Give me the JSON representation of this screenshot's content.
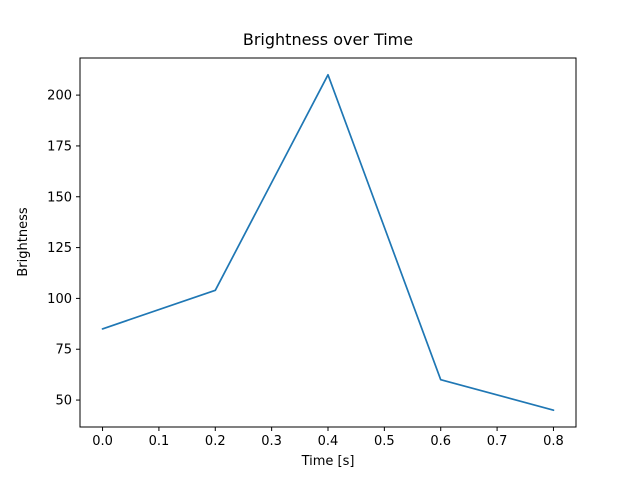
{
  "chart_data": {
    "type": "line",
    "title": "Brightness over Time",
    "xlabel": "Time [s]",
    "ylabel": "Brightness",
    "x": [
      0.0,
      0.2,
      0.4,
      0.6,
      0.8
    ],
    "y": [
      85,
      104,
      210,
      60,
      45
    ],
    "series": [
      {
        "name": "Brightness",
        "x": [
          0.0,
          0.2,
          0.4,
          0.6,
          0.8
        ],
        "values": [
          85,
          104,
          210,
          60,
          45
        ]
      }
    ],
    "xticks": [
      0.0,
      0.1,
      0.2,
      0.3,
      0.4,
      0.5,
      0.6,
      0.7,
      0.8
    ],
    "xtick_labels": [
      "0.0",
      "0.1",
      "0.2",
      "0.3",
      "0.4",
      "0.5",
      "0.6",
      "0.7",
      "0.8"
    ],
    "yticks": [
      50,
      75,
      100,
      125,
      150,
      175,
      200
    ],
    "ytick_labels": [
      "50",
      "75",
      "100",
      "125",
      "150",
      "175",
      "200"
    ],
    "xlim": [
      -0.04,
      0.84
    ],
    "ylim": [
      36.75,
      218.25
    ],
    "line_color": "#1f77b4",
    "background_color": "#ffffff",
    "grid": false,
    "legend_position": "none"
  }
}
